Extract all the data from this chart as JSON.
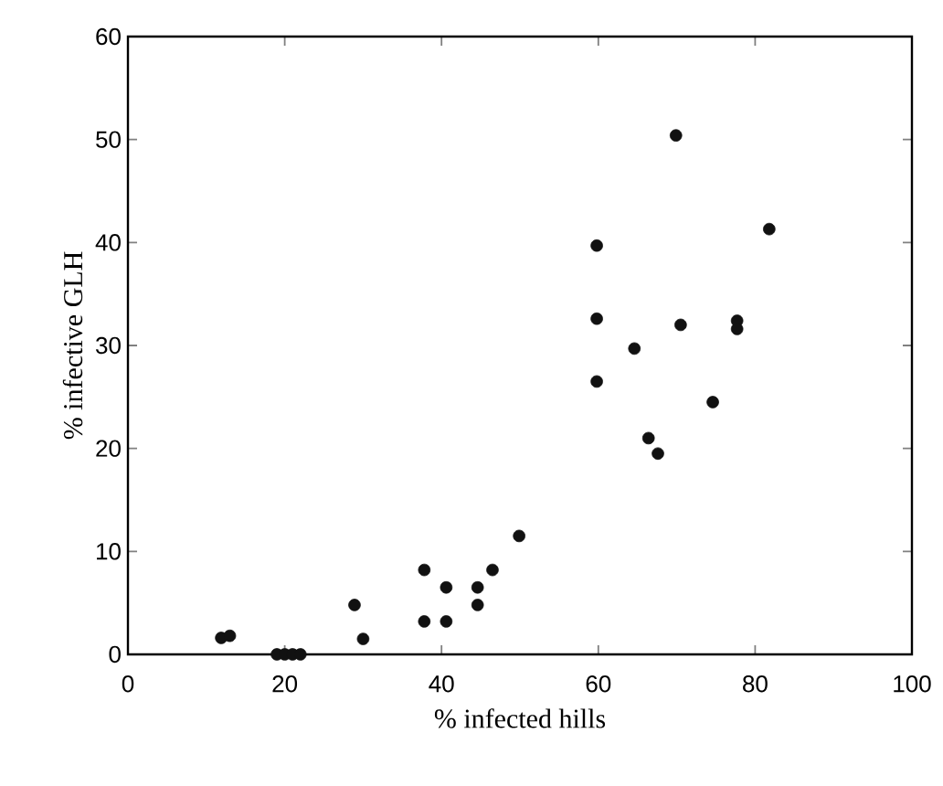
{
  "chart_data": {
    "type": "scatter",
    "xlabel": "% infected hills",
    "ylabel": "% infective GLH",
    "xlim": [
      0,
      100
    ],
    "ylim": [
      0,
      60
    ],
    "xticks": [
      0,
      20,
      40,
      60,
      80,
      100
    ],
    "yticks": [
      0,
      10,
      20,
      30,
      40,
      50,
      60
    ],
    "marker": "circle",
    "grid": false,
    "series": [
      {
        "color": "#111111",
        "x": [
          11.9,
          13.0,
          19,
          20,
          21,
          22,
          28.9,
          30.0,
          37.8,
          37.8,
          40.6,
          40.6,
          44.6,
          44.6,
          46.5,
          49.9,
          59.8,
          59.8,
          59.8,
          64.6,
          66.4,
          67.6,
          69.9,
          70.5,
          74.6,
          77.7,
          77.7,
          81.8
        ],
        "values": [
          1.6,
          1.8,
          0,
          0,
          0,
          0,
          4.8,
          1.5,
          8.2,
          3.2,
          6.5,
          3.2,
          6.5,
          4.8,
          8.2,
          11.5,
          26.5,
          32.6,
          39.7,
          29.7,
          21.0,
          19.5,
          50.4,
          32.0,
          24.5,
          32.4,
          31.6,
          41.3
        ]
      }
    ]
  }
}
